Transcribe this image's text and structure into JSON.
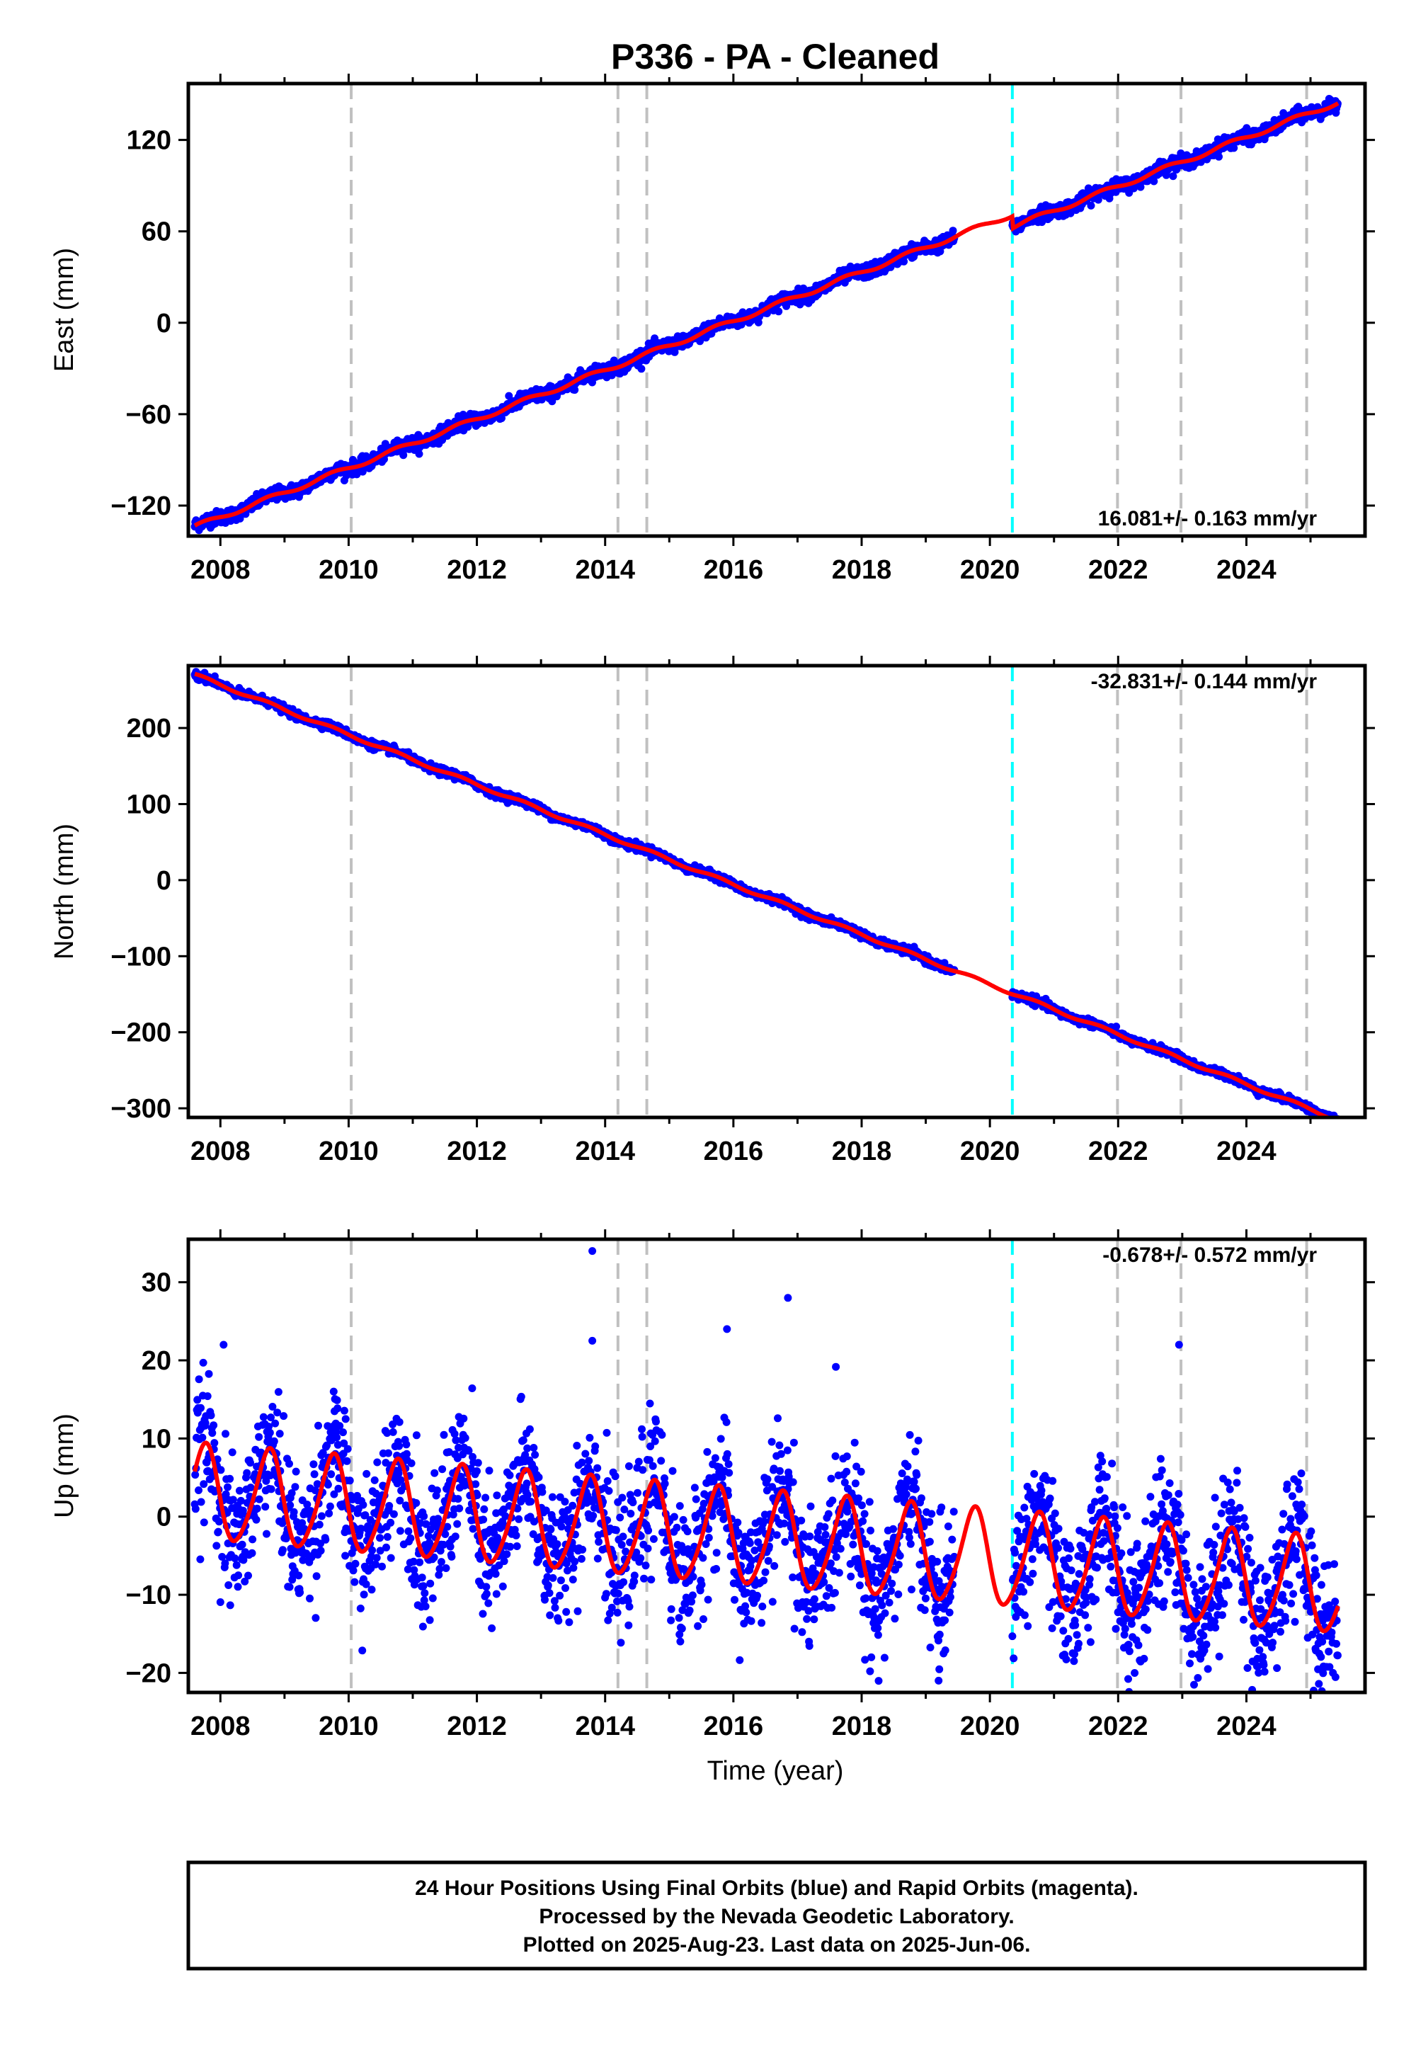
{
  "title": "P336  - PA - Cleaned",
  "colors": {
    "data": "#0000ff",
    "model": "#ff0000",
    "equipment_change": "#c0c0c0",
    "earthquake": "#00ffff"
  },
  "x_axis": {
    "label": "Time (year)",
    "range": [
      2007.5,
      2025.85
    ],
    "ticks": [
      2008,
      2010,
      2012,
      2014,
      2016,
      2018,
      2020,
      2022,
      2024
    ],
    "tick_labels": [
      "2008",
      "2010",
      "2012",
      "2014",
      "2016",
      "2018",
      "2020",
      "2022",
      "2024"
    ]
  },
  "events": {
    "gray": [
      2010.04,
      2014.2,
      2014.65,
      2021.99,
      2022.98,
      2024.94
    ],
    "cyan": [
      2020.35
    ]
  },
  "data_gap": [
    2019.45,
    2020.35
  ],
  "chart_data": [
    {
      "type": "scatter",
      "name": "east",
      "ylabel": "East (mm)",
      "ylim": [
        -140,
        157
      ],
      "yticks": [
        -120,
        -60,
        0,
        60,
        120
      ],
      "ytick_labels": [
        "−120",
        "−60",
        "0",
        "60",
        "120"
      ],
      "rate": "16.081+/- 0.163 mm/yr",
      "start_year": 2007.6,
      "end_year": 2025.43,
      "start_value": -134,
      "rate_mm_yr": 16.081,
      "step": -8,
      "step_year": 2020.35,
      "seasonal_amplitude": 1.5,
      "scatter_noise": 2.2,
      "points_per_year": 150
    },
    {
      "type": "scatter",
      "name": "north",
      "ylabel": "North (mm)",
      "ylim": [
        -312,
        282
      ],
      "yticks": [
        -300,
        -200,
        -100,
        0,
        100,
        200
      ],
      "ytick_labels": [
        "−300",
        "−200",
        "−100",
        "0",
        "100",
        "200"
      ],
      "rate": "-32.831+/- 0.144 mm/yr",
      "start_year": 2007.6,
      "end_year": 2025.43,
      "start_value": 270,
      "rate_mm_yr": -32.831,
      "step": 0,
      "step_year": 2020.35,
      "seasonal_amplitude": 2,
      "scatter_noise": 2.5,
      "points_per_year": 150
    },
    {
      "type": "scatter",
      "name": "up",
      "ylabel": "Up (mm)",
      "ylim": [
        -22.5,
        35.5
      ],
      "yticks": [
        -20,
        -10,
        0,
        10,
        20,
        30
      ],
      "ytick_labels": [
        "−20",
        "−10",
        "0",
        "10",
        "20",
        "30"
      ],
      "rate": "-0.678+/- 0.572 mm/yr",
      "start_year": 2007.6,
      "end_year": 2025.43,
      "start_value": 3,
      "rate_mm_yr": -0.678,
      "step": 0,
      "step_year": 2020.35,
      "seasonal_amplitude": 6,
      "scatter_noise": 3.5,
      "points_per_year": 150,
      "outliers": [
        [
          2013.8,
          34
        ],
        [
          2013.8,
          22.5
        ],
        [
          2008.05,
          22
        ],
        [
          2016.85,
          28
        ],
        [
          2015.9,
          24
        ],
        [
          2023.4,
          -19.5
        ],
        [
          2025.35,
          -20
        ],
        [
          2019.2,
          -21
        ],
        [
          2022.95,
          22
        ]
      ]
    }
  ],
  "footer": {
    "line1": "24 Hour Positions Using Final Orbits (blue) and Rapid Orbits (magenta).",
    "line2": "Processed by the Nevada Geodetic Laboratory.",
    "line3": "Plotted on 2025-Aug-23. Last data on 2025-Jun-06."
  }
}
